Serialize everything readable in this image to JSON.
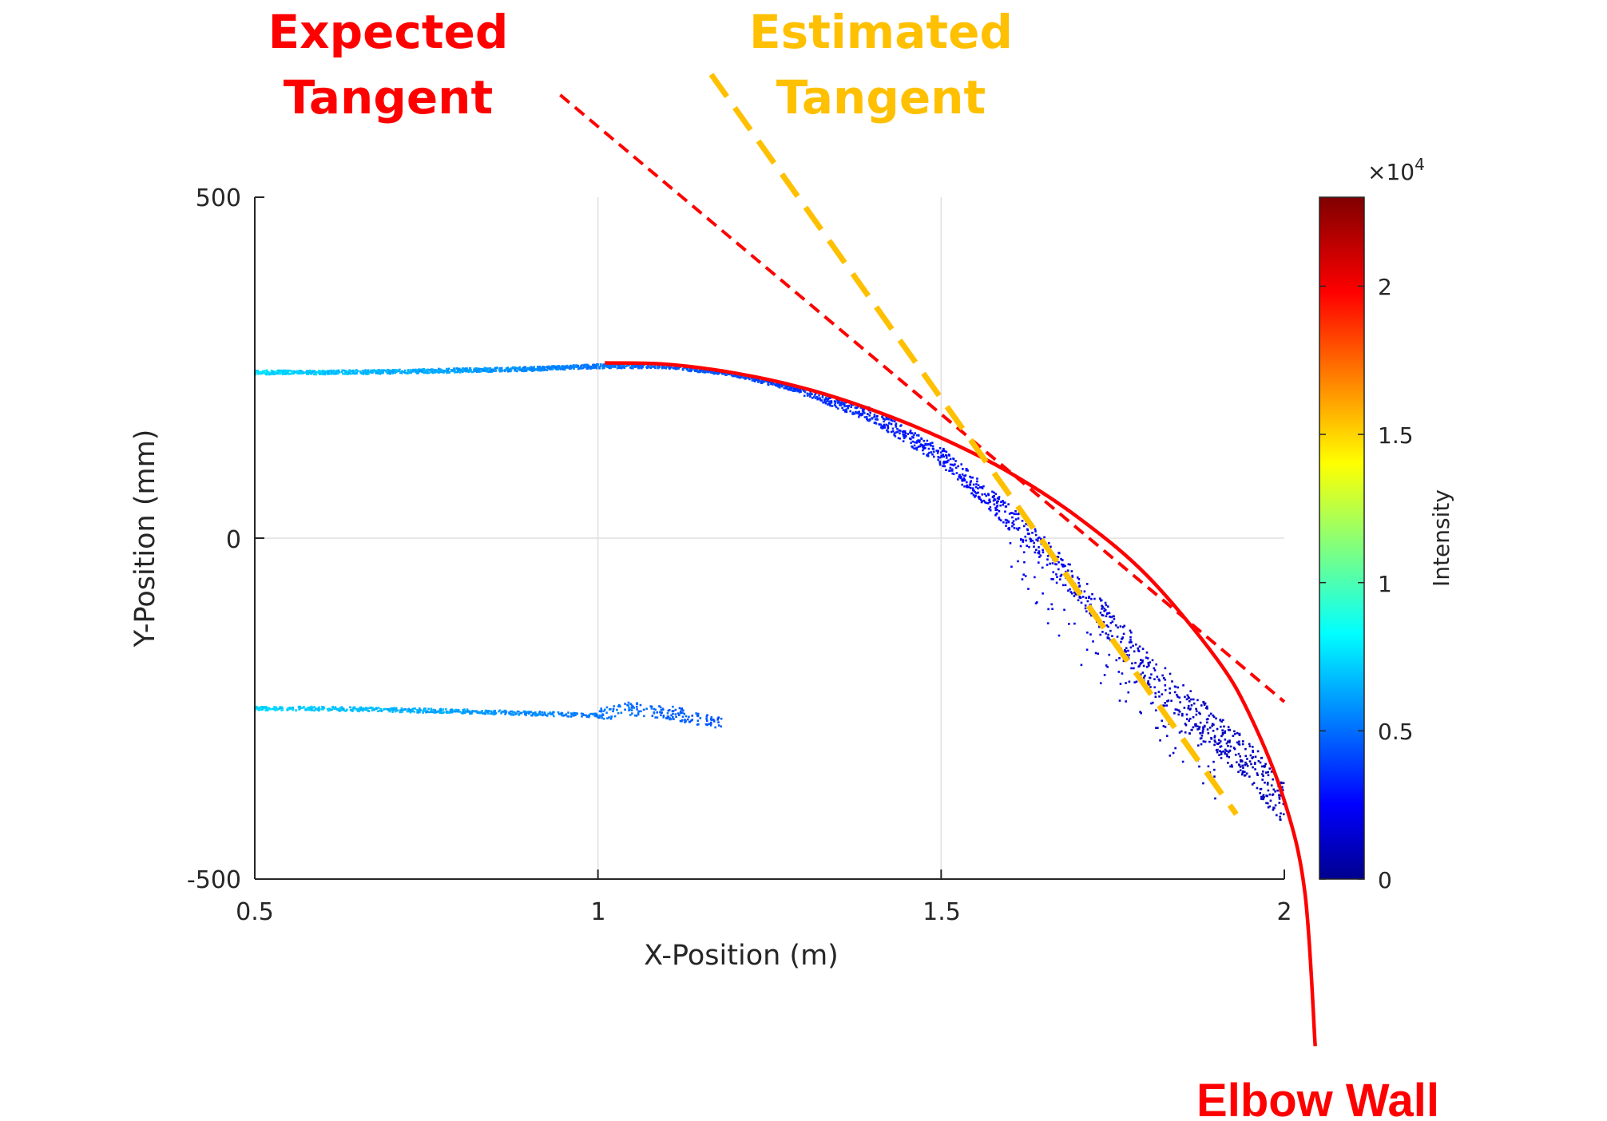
{
  "chart_data": {
    "type": "scatter",
    "title": "",
    "xlabel": "X-Position (m)",
    "ylabel": "Y-Position (mm)",
    "xlim": [
      0.5,
      2.0
    ],
    "ylim": [
      -500,
      500
    ],
    "xticks": [
      0.5,
      1,
      1.5,
      2
    ],
    "xtick_labels": [
      "0.5",
      "1",
      "1.5",
      "2"
    ],
    "yticks": [
      500,
      0,
      -500
    ],
    "ytick_labels": [
      "500",
      "0",
      "-500"
    ],
    "grid": true,
    "series": [
      {
        "name": "Upper wall point cloud",
        "kind": "points",
        "x": [
          0.5,
          0.6,
          0.7,
          0.8,
          0.9,
          1.0,
          1.1,
          1.2,
          1.3,
          1.4,
          1.5,
          1.55,
          1.6,
          1.65,
          1.7,
          1.75,
          1.8,
          1.85,
          1.9,
          1.95,
          2.0
        ],
        "y": [
          243,
          243,
          244,
          246,
          248,
          252,
          252,
          240,
          215,
          180,
          120,
          75,
          30,
          -15,
          -75,
          -130,
          -190,
          -240,
          -285,
          -330,
          -390
        ]
      },
      {
        "name": "Lower wall point cloud",
        "kind": "points",
        "x": [
          0.5,
          0.6,
          0.7,
          0.8,
          0.9,
          1.0,
          1.05,
          1.1,
          1.15,
          1.18
        ],
        "y": [
          -250,
          -250,
          -252,
          -254,
          -257,
          -260,
          -250,
          -255,
          -265,
          -272
        ]
      },
      {
        "name": "Elbow Wall",
        "kind": "line",
        "color": "#ff0000",
        "x": [
          1.01,
          1.1,
          1.2,
          1.3,
          1.4,
          1.5,
          1.6,
          1.7,
          1.8,
          1.9,
          1.95,
          2.0,
          2.03,
          2.045
        ],
        "y": [
          257,
          255,
          242,
          220,
          188,
          147,
          96,
          30,
          -55,
          -175,
          -260,
          -385,
          -520,
          -745
        ]
      },
      {
        "name": "Expected Tangent",
        "kind": "dashed-line",
        "color": "#ff0000",
        "x": [
          0.945,
          2.0
        ],
        "y": [
          650,
          -240
        ]
      },
      {
        "name": "Estimated Tangent",
        "kind": "dashed-line",
        "color": "#ffc000",
        "x": [
          1.165,
          1.93
        ],
        "y": [
          680,
          -405
        ]
      }
    ],
    "colorbar": {
      "label": "Intensity",
      "range": [
        0,
        2.3
      ],
      "multiplier": "×10",
      "multiplier_exponent": "4",
      "ticks": [
        0,
        0.5,
        1,
        1.5,
        2
      ],
      "tick_labels": [
        "0",
        "0.5",
        "1",
        "1.5",
        "2"
      ]
    },
    "annotations": {
      "expected_tangent": [
        "Expected",
        "Tangent"
      ],
      "estimated_tangent": [
        "Estimated",
        "Tangent"
      ],
      "elbow_wall": "Elbow Wall"
    },
    "colors": {
      "expected": "#ff0000",
      "estimated": "#ffc000",
      "elbow": "#ff0000",
      "grid": "#e0e0e0",
      "axis": "#262626"
    }
  }
}
